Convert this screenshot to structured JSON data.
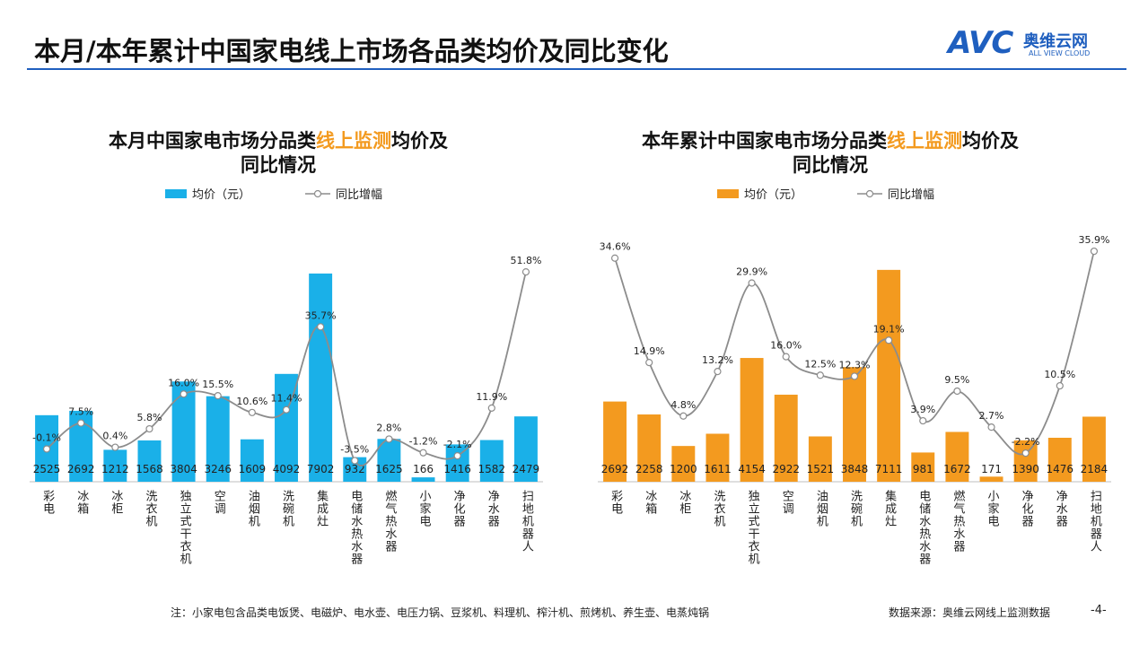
{
  "header": {
    "title": "本月/本年累计中国家电线上市场各品类均价及同比变化",
    "logo_mark": "AVC",
    "logo_name": "奥维云网",
    "logo_sub": "ALL VIEW CLOUD"
  },
  "chart_data": [
    {
      "type": "bar-line",
      "title_lines": [
        [
          {
            "text": "本月中国家电市场分品类"
          },
          {
            "text": "线上监测",
            "color": "#f39a1f"
          },
          {
            "text": "均价及"
          }
        ],
        [
          {
            "text": "同比情况"
          }
        ]
      ],
      "categories": [
        "彩电",
        "冰箱",
        "冰柜",
        "洗衣机",
        "独立式干衣机",
        "空调",
        "油烟机",
        "洗碗机",
        "集成灶",
        "电储水热水器",
        "燃气热水器",
        "小家电",
        "净化器",
        "净水器",
        "扫地机器人"
      ],
      "series": [
        {
          "name": "均价（元）",
          "color": "#1ab0e8",
          "values": [
            2525,
            2692,
            1212,
            1568,
            3804,
            3246,
            1609,
            4092,
            7902,
            932,
            1625,
            166,
            1416,
            1582,
            2479
          ]
        },
        {
          "name": "同比增幅",
          "color": "#8c8c8c",
          "axis": "y2",
          "values": [
            -0.1,
            7.5,
            0.4,
            5.8,
            16.0,
            15.5,
            10.6,
            11.4,
            35.7,
            -3.5,
            2.8,
            -1.2,
            -2.1,
            11.9,
            51.8
          ],
          "value_labels": [
            "-0.1%",
            "7.5%",
            "0.4%",
            "5.8%",
            "16.0%",
            "15.5%",
            "10.6%",
            "11.4%",
            "35.7%",
            "-3.5%",
            "2.8%",
            "-1.2%",
            "-2.1%",
            "11.9%",
            "51.8%"
          ]
        }
      ],
      "ylim": [
        0,
        9090
      ],
      "y2lim": [
        -9.7,
        60.5
      ]
    },
    {
      "type": "bar-line",
      "title_lines": [
        [
          {
            "text": "本年累计中国家电市场分品类"
          },
          {
            "text": "线上监测",
            "color": "#f39a1f"
          },
          {
            "text": "均价及"
          }
        ],
        [
          {
            "text": "同比情况"
          }
        ]
      ],
      "categories": [
        "彩电",
        "冰箱",
        "冰柜",
        "洗衣机",
        "独立式干衣机",
        "空调",
        "油烟机",
        "洗碗机",
        "集成灶",
        "电储水热水器",
        "燃气热水器",
        "小家电",
        "净化器",
        "净水器",
        "扫地机器人"
      ],
      "series": [
        {
          "name": "均价（元）",
          "color": "#f39a1f",
          "values": [
            2692,
            2258,
            1200,
            1611,
            4154,
            2922,
            1521,
            3848,
            7111,
            981,
            1672,
            171,
            1390,
            1476,
            2184
          ]
        },
        {
          "name": "同比增幅",
          "color": "#8c8c8c",
          "axis": "y2",
          "values": [
            34.6,
            14.9,
            4.8,
            13.2,
            29.9,
            16.0,
            12.5,
            12.3,
            19.1,
            3.9,
            9.5,
            2.7,
            -2.2,
            10.5,
            35.9
          ],
          "value_labels": [
            "34.6%",
            "14.9%",
            "4.8%",
            "13.2%",
            "29.9%",
            "16.0%",
            "12.5%",
            "12.3%",
            "19.1%",
            "3.9%",
            "9.5%",
            "2.7%",
            "-2.2%",
            "10.5%",
            "35.9%"
          ]
        }
      ],
      "ylim": [
        0,
        8040
      ],
      "y2lim": [
        -7.6,
        37.6
      ]
    }
  ],
  "footer": {
    "note": "注：小家电包含品类电饭煲、电磁炉、电水壶、电压力锅、豆浆机、料理机、榨汁机、煎烤机、养生壶、电蒸炖锅",
    "source": "数据来源：奥维云网线上监测数据",
    "page": "-4-"
  }
}
